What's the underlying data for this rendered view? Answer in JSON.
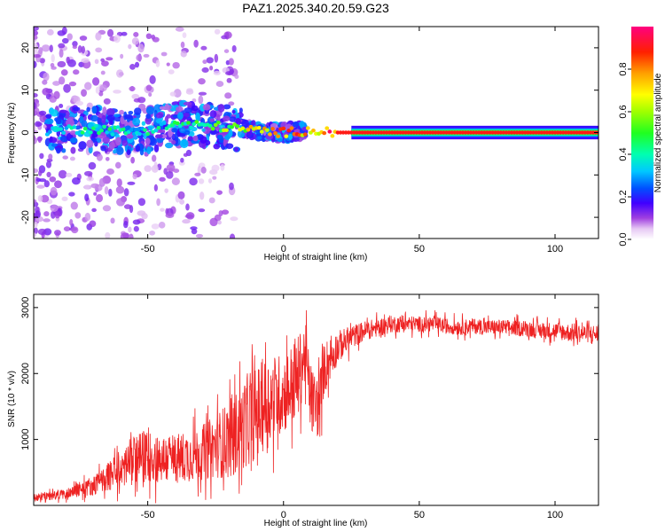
{
  "title": "PAZ1.2025.340.20.59.G23",
  "chart_data": [
    {
      "type": "heatmap",
      "title": "PAZ1.2025.340.20.59.G23",
      "xlabel": "Height of straight line (km)",
      "ylabel": "Frequency (Hz)",
      "xlim": [
        -92,
        116
      ],
      "ylim": [
        -25,
        25
      ],
      "x_ticks": [
        -50,
        0,
        50,
        100
      ],
      "y_ticks": [
        -20,
        -10,
        0,
        10,
        20
      ],
      "colorbar": {
        "label": "Normalized spectral amplitude",
        "range": [
          0.0,
          1.0
        ],
        "ticks": [
          0.0,
          0.2,
          0.4,
          0.6,
          0.8
        ],
        "tick_labels": [
          "0.0",
          "0.2",
          "0.4",
          "0.6",
          "0.8"
        ]
      },
      "ridge_description": "dominant component near 0 Hz; scattered weak energy below -20 km, stable narrow band above 20 km",
      "ridge": [
        {
          "x": -85,
          "f": 0.5,
          "a": 0.35
        },
        {
          "x": -70,
          "f": 1.0,
          "a": 0.45
        },
        {
          "x": -55,
          "f": 0.0,
          "a": 0.4
        },
        {
          "x": -40,
          "f": 2.0,
          "a": 0.45
        },
        {
          "x": -25,
          "f": 1.5,
          "a": 0.55
        },
        {
          "x": -10,
          "f": 0.5,
          "a": 0.75
        },
        {
          "x": 0,
          "f": 0.0,
          "a": 0.85
        },
        {
          "x": 10,
          "f": 0.5,
          "a": 0.85
        },
        {
          "x": 20,
          "f": 0.0,
          "a": 0.9
        },
        {
          "x": 50,
          "f": 0.0,
          "a": 0.9
        },
        {
          "x": 80,
          "f": 0.0,
          "a": 0.9
        },
        {
          "x": 116,
          "f": 0.0,
          "a": 0.9
        }
      ]
    },
    {
      "type": "line",
      "title": "",
      "xlabel": "Height of straight line (km)",
      "ylabel": "SNR (10 * v/v)",
      "xlim": [
        -92,
        116
      ],
      "ylim": [
        0,
        3200
      ],
      "x_ticks": [
        -50,
        0,
        50,
        100
      ],
      "y_ticks": [
        1000,
        2000,
        3000
      ],
      "series": [
        {
          "name": "SNR",
          "color": "#ee2222",
          "x": [
            -92,
            -85,
            -80,
            -75,
            -70,
            -65,
            -60,
            -55,
            -50,
            -45,
            -40,
            -35,
            -30,
            -25,
            -20,
            -15,
            -10,
            -5,
            0,
            5,
            8,
            10,
            13,
            15,
            20,
            25,
            30,
            35,
            40,
            45,
            50,
            55,
            60,
            65,
            70,
            75,
            80,
            85,
            90,
            95,
            100,
            105,
            110,
            116
          ],
          "y": [
            120,
            150,
            180,
            250,
            300,
            420,
            550,
            700,
            750,
            700,
            700,
            750,
            800,
            900,
            1000,
            1200,
            1400,
            1600,
            1700,
            1900,
            2300,
            1600,
            1500,
            2100,
            2400,
            2550,
            2650,
            2700,
            2750,
            2750,
            2750,
            2750,
            2720,
            2700,
            2720,
            2700,
            2700,
            2690,
            2680,
            2650,
            2650,
            2620,
            2610,
            2600
          ],
          "noise_amplitude": [
            60,
            70,
            80,
            110,
            150,
            200,
            300,
            380,
            400,
            380,
            380,
            400,
            420,
            480,
            600,
            650,
            700,
            700,
            600,
            650,
            500,
            500,
            500,
            400,
            250,
            180,
            150,
            140,
            130,
            130,
            120,
            120,
            120,
            120,
            120,
            120,
            120,
            120,
            120,
            130,
            130,
            140,
            140,
            140
          ]
        }
      ]
    }
  ]
}
